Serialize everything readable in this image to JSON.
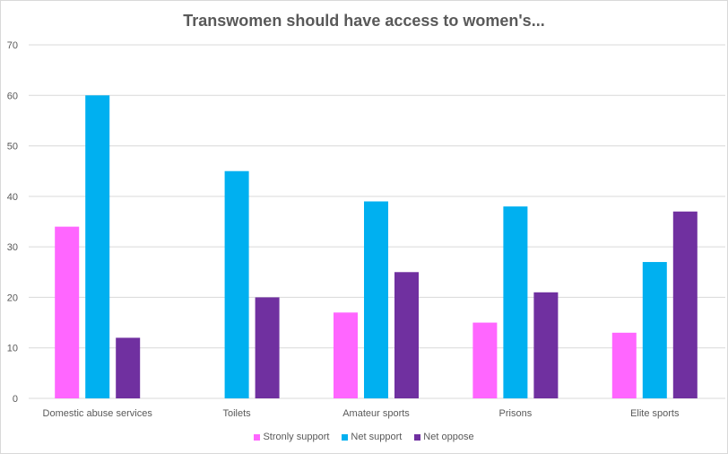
{
  "chart_data": {
    "type": "bar",
    "title": "Transwomen should have access to women's...",
    "xlabel": "",
    "ylabel": "",
    "ylim": [
      0,
      70
    ],
    "yticks": [
      0,
      10,
      20,
      30,
      40,
      50,
      60,
      70
    ],
    "grid": true,
    "legend_position": "bottom",
    "categories": [
      "Domestic abuse services",
      "Toilets",
      "Amateur sports",
      "Prisons",
      "Elite sports"
    ],
    "series": [
      {
        "name": "Stronly support",
        "color": "#ff66ff",
        "values": [
          34,
          null,
          17,
          15,
          13
        ]
      },
      {
        "name": "Net support",
        "color": "#00b0f0",
        "values": [
          60,
          45,
          39,
          38,
          27
        ]
      },
      {
        "name": "Net oppose",
        "color": "#7030a0",
        "values": [
          12,
          20,
          25,
          21,
          37
        ]
      }
    ]
  }
}
